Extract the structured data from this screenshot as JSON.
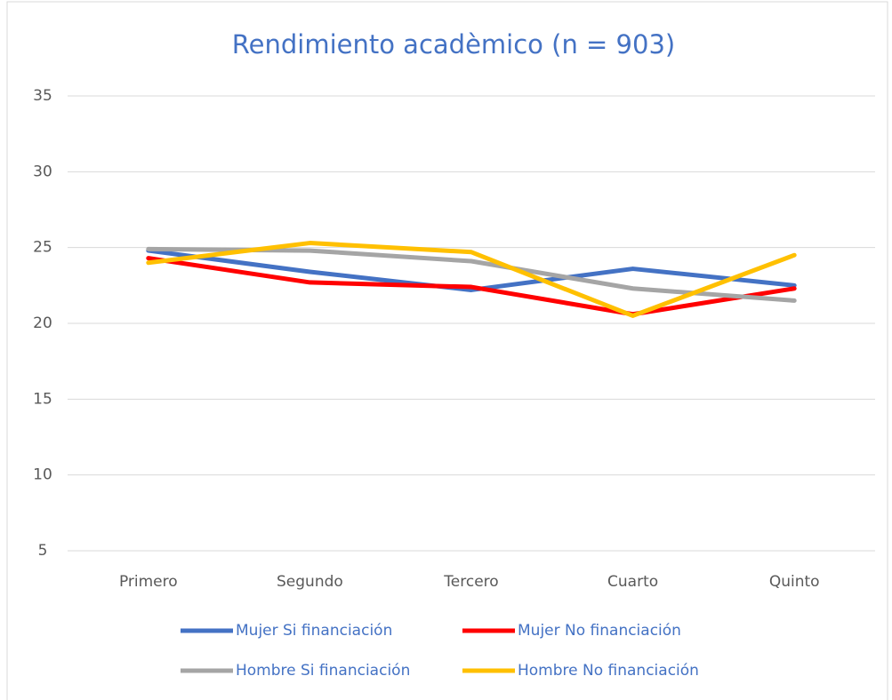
{
  "chart_data": {
    "type": "line",
    "title": "Rendimiento acadèmico (n = 903)",
    "categories": [
      "Primero",
      "Segundo",
      "Tercero",
      "Cuarto",
      "Quinto"
    ],
    "series": [
      {
        "name": "Mujer Si financiación",
        "color": "#4472c4",
        "values": [
          24.8,
          23.4,
          22.2,
          23.6,
          22.5
        ]
      },
      {
        "name": "Mujer No financiación",
        "color": "#ff0000",
        "values": [
          24.3,
          22.7,
          22.4,
          20.6,
          22.3
        ]
      },
      {
        "name": "Hombre Si financiación",
        "color": "#a5a5a5",
        "values": [
          24.9,
          24.8,
          24.1,
          22.3,
          21.5
        ]
      },
      {
        "name": "Hombre No financiación",
        "color": "#ffc000",
        "values": [
          24.0,
          25.3,
          24.7,
          20.5,
          24.5
        ]
      }
    ],
    "ylim": [
      5,
      35
    ],
    "yticks": [
      5,
      10,
      15,
      20,
      25,
      30,
      35
    ],
    "grid": true
  }
}
